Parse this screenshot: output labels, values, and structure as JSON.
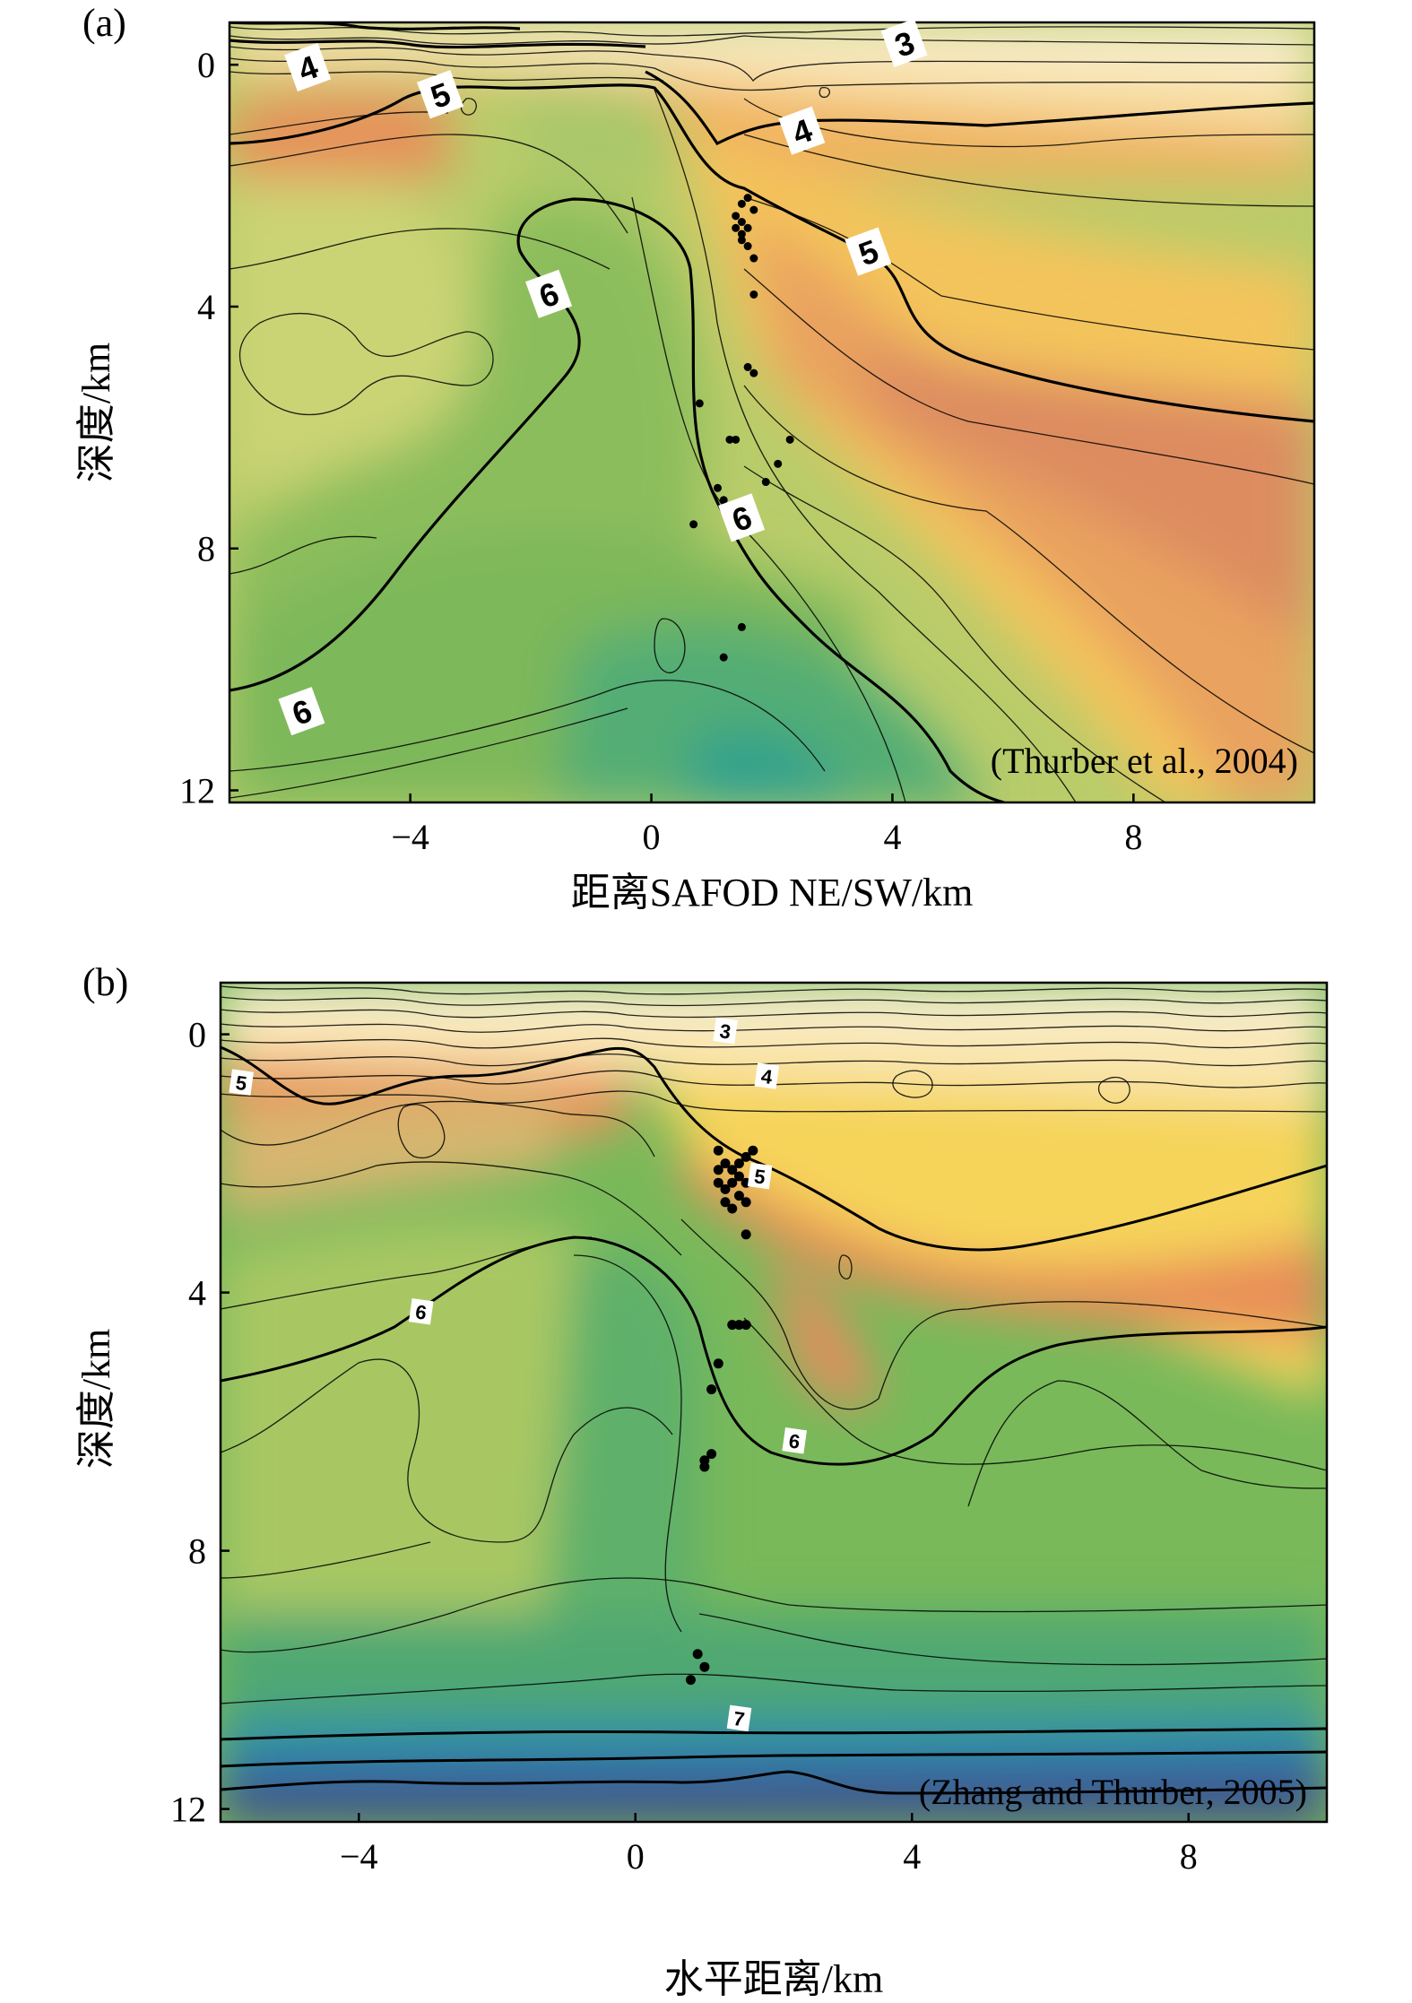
{
  "chart_data": [
    {
      "type": "heatmap",
      "panel_label": "(a)",
      "citation": "(Thurber et al., 2004)",
      "xlabel": "距离SAFOD NE/SW/km",
      "ylabel": "深度/km",
      "xlim": [
        -7,
        11
      ],
      "ylim": [
        12.2,
        -0.7
      ],
      "xticks": [
        -4,
        0,
        4,
        8
      ],
      "xtick_labels": [
        "−4",
        "0",
        "4",
        "8"
      ],
      "yticks": [
        0,
        4,
        8,
        12
      ],
      "ytick_labels": [
        "0",
        "4",
        "8",
        "12"
      ],
      "contour_labels": [
        {
          "text": "3",
          "x": 4.2,
          "y": -0.35
        },
        {
          "text": "4",
          "x": -5.7,
          "y": 0.05
        },
        {
          "text": "4",
          "x": 2.5,
          "y": 1.1
        },
        {
          "text": "5",
          "x": -3.5,
          "y": 0.5
        },
        {
          "text": "5",
          "x": 3.6,
          "y": 3.1
        },
        {
          "text": "6",
          "x": -1.7,
          "y": 3.8
        },
        {
          "text": "6",
          "x": 1.5,
          "y": 7.5
        },
        {
          "text": "6",
          "x": -5.8,
          "y": 10.7
        }
      ],
      "earthquakes": [
        [
          1.5,
          2.3
        ],
        [
          1.6,
          2.2
        ],
        [
          1.4,
          2.5
        ],
        [
          1.5,
          2.6
        ],
        [
          1.6,
          2.7
        ],
        [
          1.7,
          2.4
        ],
        [
          1.5,
          2.9
        ],
        [
          1.6,
          3.0
        ],
        [
          1.7,
          3.2
        ],
        [
          1.4,
          2.7
        ],
        [
          1.5,
          2.8
        ],
        [
          1.7,
          3.8
        ],
        [
          1.6,
          5.0
        ],
        [
          1.7,
          5.1
        ],
        [
          0.8,
          5.6
        ],
        [
          1.3,
          6.2
        ],
        [
          1.4,
          6.2
        ],
        [
          2.3,
          6.2
        ],
        [
          2.1,
          6.6
        ],
        [
          1.9,
          6.9
        ],
        [
          1.1,
          7.0
        ],
        [
          1.2,
          7.2
        ],
        [
          0.7,
          7.6
        ],
        [
          1.5,
          9.3
        ],
        [
          1.2,
          9.8
        ]
      ]
    },
    {
      "type": "heatmap",
      "panel_label": "(b)",
      "citation": "(Zhang and Thurber, 2005)",
      "xlabel": "水平距离/km",
      "ylabel": "深度/km",
      "xlim": [
        -6,
        10
      ],
      "ylim": [
        12.2,
        -0.8
      ],
      "xticks": [
        -4,
        0,
        4,
        8
      ],
      "xtick_labels": [
        "−4",
        "0",
        "4",
        "8"
      ],
      "yticks": [
        0,
        4,
        8,
        12
      ],
      "ytick_labels": [
        "0",
        "4",
        "8",
        "12"
      ],
      "contour_labels": [
        {
          "text": "3",
          "x": 1.3,
          "y": -0.05
        },
        {
          "text": "4",
          "x": 1.9,
          "y": 0.65
        },
        {
          "text": "5",
          "x": -5.7,
          "y": 0.75
        },
        {
          "text": "6",
          "x": -3.1,
          "y": 4.3
        },
        {
          "text": "6",
          "x": 2.3,
          "y": 6.3
        },
        {
          "text": "5",
          "x": 1.8,
          "y": 2.2
        },
        {
          "text": "7",
          "x": 1.5,
          "y": 10.6
        }
      ],
      "earthquakes": [
        [
          1.2,
          1.8
        ],
        [
          1.3,
          2.0
        ],
        [
          1.4,
          2.1
        ],
        [
          1.5,
          2.2
        ],
        [
          1.6,
          1.9
        ],
        [
          1.7,
          1.8
        ],
        [
          1.2,
          2.3
        ],
        [
          1.3,
          2.4
        ],
        [
          1.4,
          2.3
        ],
        [
          1.5,
          2.5
        ],
        [
          1.6,
          2.6
        ],
        [
          1.3,
          2.6
        ],
        [
          1.2,
          2.1
        ],
        [
          1.5,
          2.0
        ],
        [
          1.4,
          2.7
        ],
        [
          1.6,
          2.3
        ],
        [
          1.6,
          3.1
        ],
        [
          1.4,
          4.5
        ],
        [
          1.5,
          4.5
        ],
        [
          1.6,
          4.5
        ],
        [
          1.2,
          5.1
        ],
        [
          1.1,
          5.5
        ],
        [
          1.1,
          6.5
        ],
        [
          1.0,
          6.7
        ],
        [
          1.0,
          6.6
        ],
        [
          0.9,
          9.6
        ],
        [
          1.0,
          9.8
        ],
        [
          0.8,
          10.0
        ]
      ]
    }
  ]
}
